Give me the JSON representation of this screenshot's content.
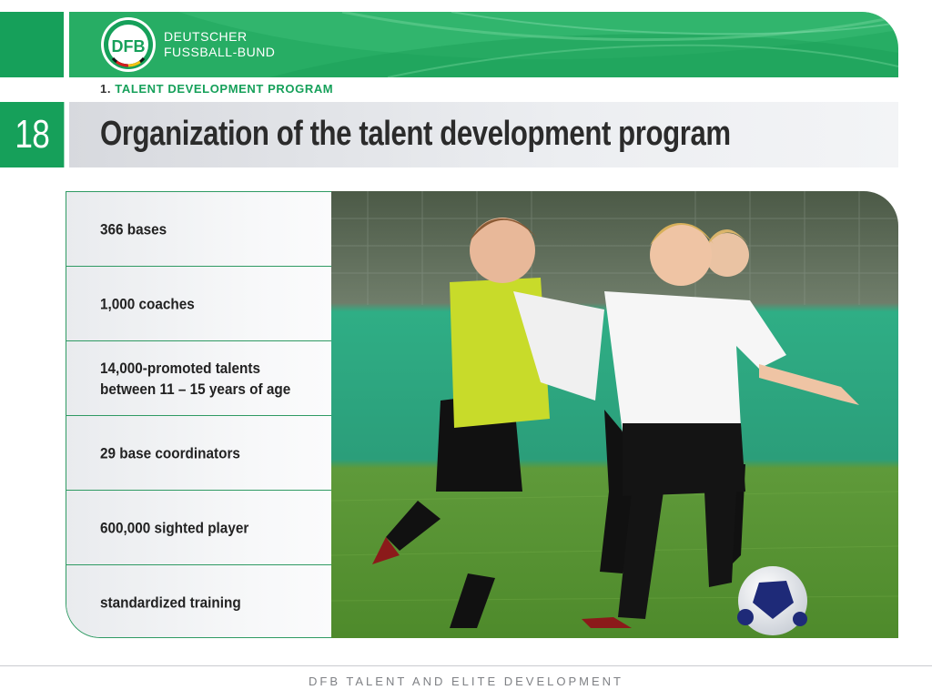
{
  "header": {
    "org_line1": "DEUTSCHER",
    "org_line2": "FUSSBALL-BUND",
    "logo_letters": "DFB",
    "section_number": "1.",
    "section_title": "TALENT DEVELOPMENT PROGRAM"
  },
  "page_number": "18",
  "title": "Organization of the talent development program",
  "facts": [
    "366 bases",
    "1,000 coaches",
    "14,000-promoted talents\nbetween 11 – 15 years of age",
    "29 base coordinators",
    "600,000 sighted player",
    "standardized training"
  ],
  "footer": "DFB TALENT AND ELITE DEVELOPMENT",
  "colors": {
    "brand_green": "#16a05a",
    "title_text": "#2b2b2b",
    "footer_text": "#7f8185"
  },
  "photo": {
    "subject": "soccer-players-photo"
  }
}
